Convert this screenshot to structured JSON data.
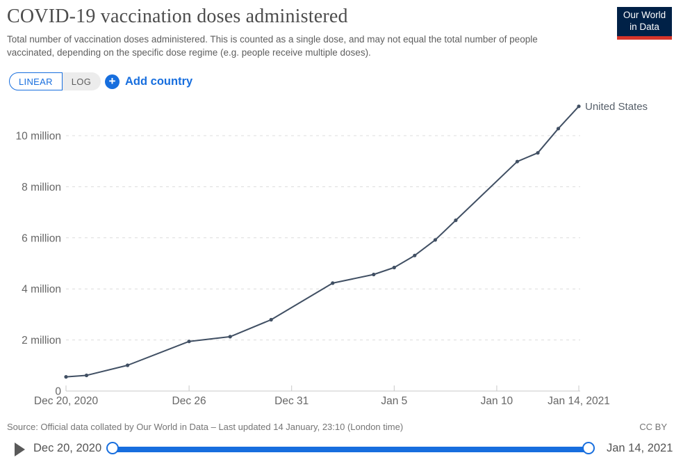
{
  "header": {
    "title": "COVID-19 vaccination doses administered",
    "subtitle": "Total number of vaccination doses administered. This is counted as a single dose, and may not equal the total number of people vaccinated, depending on the specific dose regime (e.g. people receive multiple doses).",
    "logo_line1": "Our World",
    "logo_line2": "in Data"
  },
  "controls": {
    "linear_label": "LINEAR",
    "log_label": "LOG",
    "add_country_label": "Add country"
  },
  "chart_data": {
    "type": "line",
    "title": "COVID-19 vaccination doses administered",
    "xlabel": "",
    "ylabel": "doses administered",
    "ylim_millions": [
      0,
      11.5
    ],
    "grid": "horizontal dashed",
    "legend_position": "label at end of line",
    "yticks": [
      {
        "value": 0,
        "label": "0"
      },
      {
        "value": 2,
        "label": "2 million"
      },
      {
        "value": 4,
        "label": "4 million"
      },
      {
        "value": 6,
        "label": "6 million"
      },
      {
        "value": 8,
        "label": "8 million"
      },
      {
        "value": 10,
        "label": "10 million"
      }
    ],
    "xticks": [
      {
        "day": 0,
        "label": "Dec 20, 2020"
      },
      {
        "day": 6,
        "label": "Dec 26"
      },
      {
        "day": 11,
        "label": "Dec 31"
      },
      {
        "day": 16,
        "label": "Jan 5"
      },
      {
        "day": 21,
        "label": "Jan 10"
      },
      {
        "day": 25,
        "label": "Jan 14, 2021"
      }
    ],
    "series": [
      {
        "name": "United States",
        "color": "#404f63",
        "points": [
          {
            "date": "Dec 20, 2020",
            "day": 0,
            "doses_millions": 0.556
          },
          {
            "date": "Dec 21, 2020",
            "day": 1,
            "doses_millions": 0.614
          },
          {
            "date": "Dec 23, 2020",
            "day": 3,
            "doses_millions": 1.008
          },
          {
            "date": "Dec 26, 2020",
            "day": 6,
            "doses_millions": 1.944
          },
          {
            "date": "Dec 28, 2020",
            "day": 8,
            "doses_millions": 2.127
          },
          {
            "date": "Dec 30, 2020",
            "day": 10,
            "doses_millions": 2.794
          },
          {
            "date": "Jan 2, 2021",
            "day": 13,
            "doses_millions": 4.226
          },
          {
            "date": "Jan 4, 2021",
            "day": 15,
            "doses_millions": 4.563
          },
          {
            "date": "Jan 5, 2021",
            "day": 16,
            "doses_millions": 4.836
          },
          {
            "date": "Jan 6, 2021",
            "day": 17,
            "doses_millions": 5.307
          },
          {
            "date": "Jan 7, 2021",
            "day": 18,
            "doses_millions": 5.919
          },
          {
            "date": "Jan 8, 2021",
            "day": 19,
            "doses_millions": 6.688
          },
          {
            "date": "Jan 11, 2021",
            "day": 22,
            "doses_millions": 8.987
          },
          {
            "date": "Jan 12, 2021",
            "day": 23,
            "doses_millions": 9.327
          },
          {
            "date": "Jan 13, 2021",
            "day": 24,
            "doses_millions": 10.278
          },
          {
            "date": "Jan 14, 2021",
            "day": 25,
            "doses_millions": 11.149
          }
        ]
      }
    ]
  },
  "footer": {
    "source": "Source: Official data collated by Our World in Data – Last updated 14 January, 23:10 (London time)",
    "license": "CC BY"
  },
  "timeline": {
    "start_label": "Dec 20, 2020",
    "end_label": "Jan 14, 2021"
  },
  "colors": {
    "accent_blue": "#176ede",
    "series_line": "#404f63",
    "logo_navy": "#002147",
    "logo_red": "#d7352a",
    "grid_gray": "#dcdcdc",
    "axis_gray": "#c8c8c8",
    "tick_text": "#666666"
  }
}
